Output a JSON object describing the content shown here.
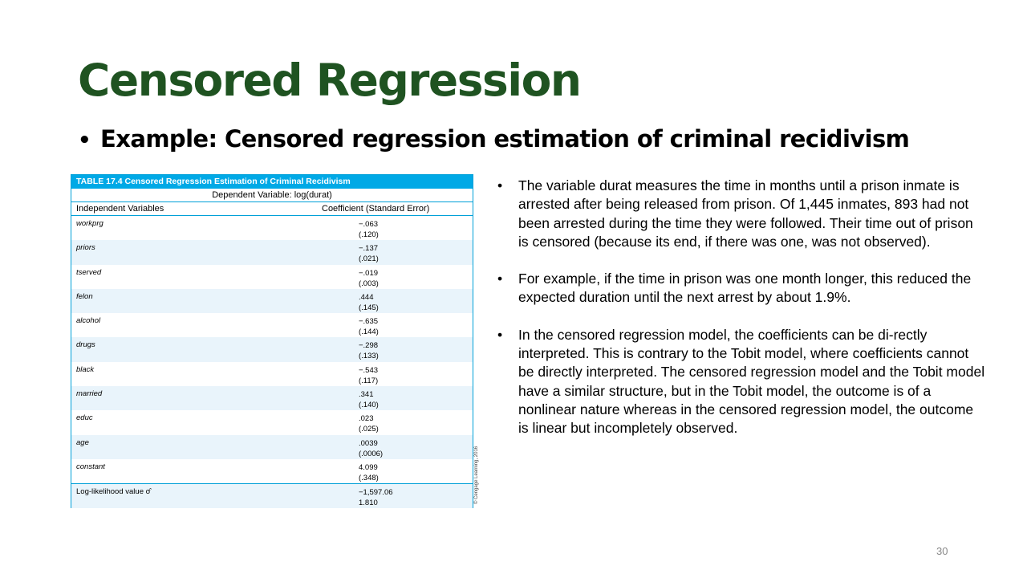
{
  "title": "Censored Regression",
  "subtitle": "Example: Censored regression estimation of criminal recidivism",
  "table": {
    "caption": "TABLE 17.4  Censored Regression Estimation of Criminal Recidivism",
    "dependent": "Dependent Variable: log(durat)",
    "col1": "Independent Variables",
    "col2": "Coefficient (Standard Error)",
    "rows": [
      {
        "var": "workprg",
        "coef": "−.063",
        "se": "(.120)"
      },
      {
        "var": "priors",
        "coef": "−.137",
        "se": "(.021)"
      },
      {
        "var": "tserved",
        "coef": "−.019",
        "se": "(.003)"
      },
      {
        "var": "felon",
        "coef": ".444",
        "se": "(.145)"
      },
      {
        "var": "alcohol",
        "coef": "−.635",
        "se": "(.144)"
      },
      {
        "var": "drugs",
        "coef": "−.298",
        "se": "(.133)"
      },
      {
        "var": "black",
        "coef": "−.543",
        "se": "(.117)"
      },
      {
        "var": "married",
        "coef": ".341",
        "se": "(.140)"
      },
      {
        "var": "educ",
        "coef": ".023",
        "se": "(.025)"
      },
      {
        "var": "age",
        "coef": ".0039",
        "se": "(.0006)"
      },
      {
        "var": "constant",
        "coef": "4.099",
        "se": "(.348)"
      }
    ],
    "loglik_label": "Log-likelihood value σ̂",
    "loglik_value": "−1,597.06",
    "sigma_value": "1.810",
    "credit": "© Cengage Learning, 2016"
  },
  "bullets": [
    "The variable durat measures the time in months until a prison inmate is arrested after being released from prison. Of 1,445 inmates, 893 had not been arrested during the time they were followed. Their time out of prison is censored (because its end, if there was one, was not observed).",
    "For example, if the time in prison was one month longer, this reduced the expected duration until the next arrest by about 1.9%.",
    "In the censored regression model, the coefficients can be di-rectly interpreted. This is contrary to the Tobit model, where coefficients cannot be directly interpreted. The censored regression model and the Tobit model have a similar structure, but in the Tobit model, the outcome is of a nonlinear nature whereas in the censored regression model, the outcome is linear but incompletely observed."
  ],
  "page_number": "30"
}
